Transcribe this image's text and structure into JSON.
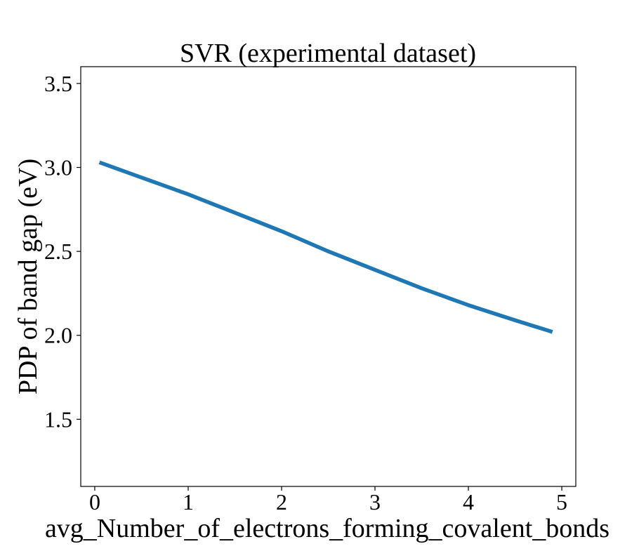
{
  "chart_data": {
    "type": "line",
    "title": "SVR (experimental dataset)",
    "xlabel": "avg_Number_of_electrons_forming_covalent_bonds",
    "ylabel": "PDP of band gap (eV)",
    "xlim": [
      -0.15,
      5.15
    ],
    "ylim": [
      1.1,
      3.6
    ],
    "xticks": [
      0,
      1,
      2,
      3,
      4,
      5
    ],
    "xtick_labels": [
      "0",
      "1",
      "2",
      "3",
      "4",
      "5"
    ],
    "yticks": [
      1.5,
      2.0,
      2.5,
      3.0,
      3.5
    ],
    "ytick_labels": [
      "1.5",
      "2.0",
      "2.5",
      "3.0",
      "3.5"
    ],
    "grid": false,
    "series": [
      {
        "color": "#1f77b4",
        "x": [
          0.05,
          0.5,
          1.0,
          1.5,
          2.0,
          2.5,
          3.0,
          3.5,
          4.0,
          4.5,
          4.9
        ],
        "y": [
          3.03,
          2.94,
          2.84,
          2.73,
          2.62,
          2.5,
          2.39,
          2.28,
          2.18,
          2.09,
          2.02
        ]
      }
    ]
  }
}
